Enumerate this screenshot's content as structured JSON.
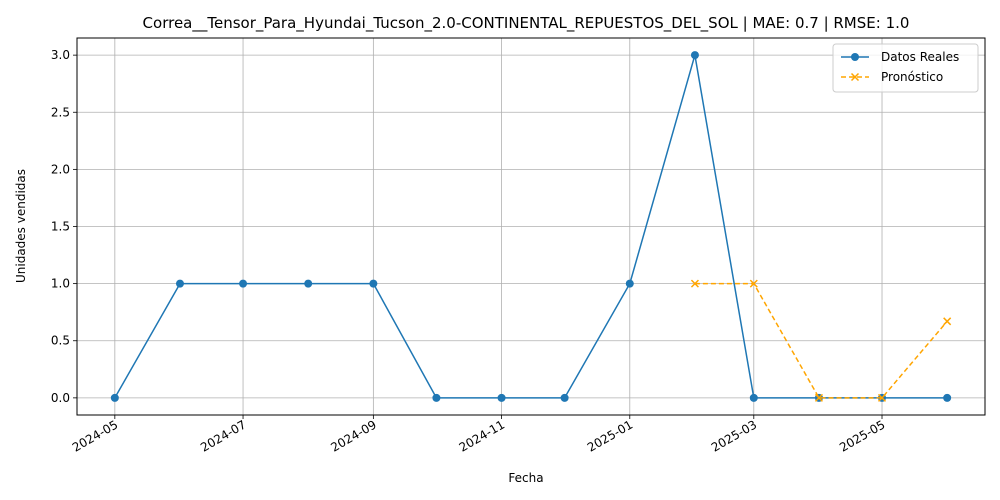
{
  "chart_data": {
    "type": "line",
    "title": "Correa__Tensor_Para_Hyundai_Tucson_2.0-CONTINENTAL_REPUESTOS_DEL_SOL | MAE: 0.7 | RMSE: 1.0",
    "xlabel": "Fecha",
    "ylabel": "Unidades vendidas",
    "xlim": [
      "2024-04-13",
      "2025-06-19"
    ],
    "ylim": [
      -0.15,
      3.15
    ],
    "grid": true,
    "legend_position": "top-right",
    "x_ticks": [
      "2024-05",
      "2024-07",
      "2024-09",
      "2024-11",
      "2025-01",
      "2025-03",
      "2025-05"
    ],
    "y_ticks": [
      "0.0",
      "0.5",
      "1.0",
      "1.5",
      "2.0",
      "2.5",
      "3.0"
    ],
    "series": [
      {
        "name": "Datos Reales",
        "color": "#1f77b4",
        "marker": "circle",
        "linestyle": "solid",
        "x": [
          "2024-05-01",
          "2024-06-01",
          "2024-07-01",
          "2024-08-01",
          "2024-09-01",
          "2024-10-01",
          "2024-11-01",
          "2024-12-01",
          "2025-01-01",
          "2025-02-01",
          "2025-03-01",
          "2025-04-01",
          "2025-05-01",
          "2025-06-01"
        ],
        "values": [
          0,
          1,
          1,
          1,
          1,
          0,
          0,
          0,
          1,
          3,
          0,
          0,
          0,
          0
        ]
      },
      {
        "name": "Pronóstico",
        "color": "#ffa500",
        "marker": "x",
        "linestyle": "dashed",
        "x": [
          "2025-02-01",
          "2025-03-01",
          "2025-04-01",
          "2025-05-01",
          "2025-06-01"
        ],
        "values": [
          1,
          1,
          0,
          0,
          0.67
        ]
      }
    ]
  }
}
